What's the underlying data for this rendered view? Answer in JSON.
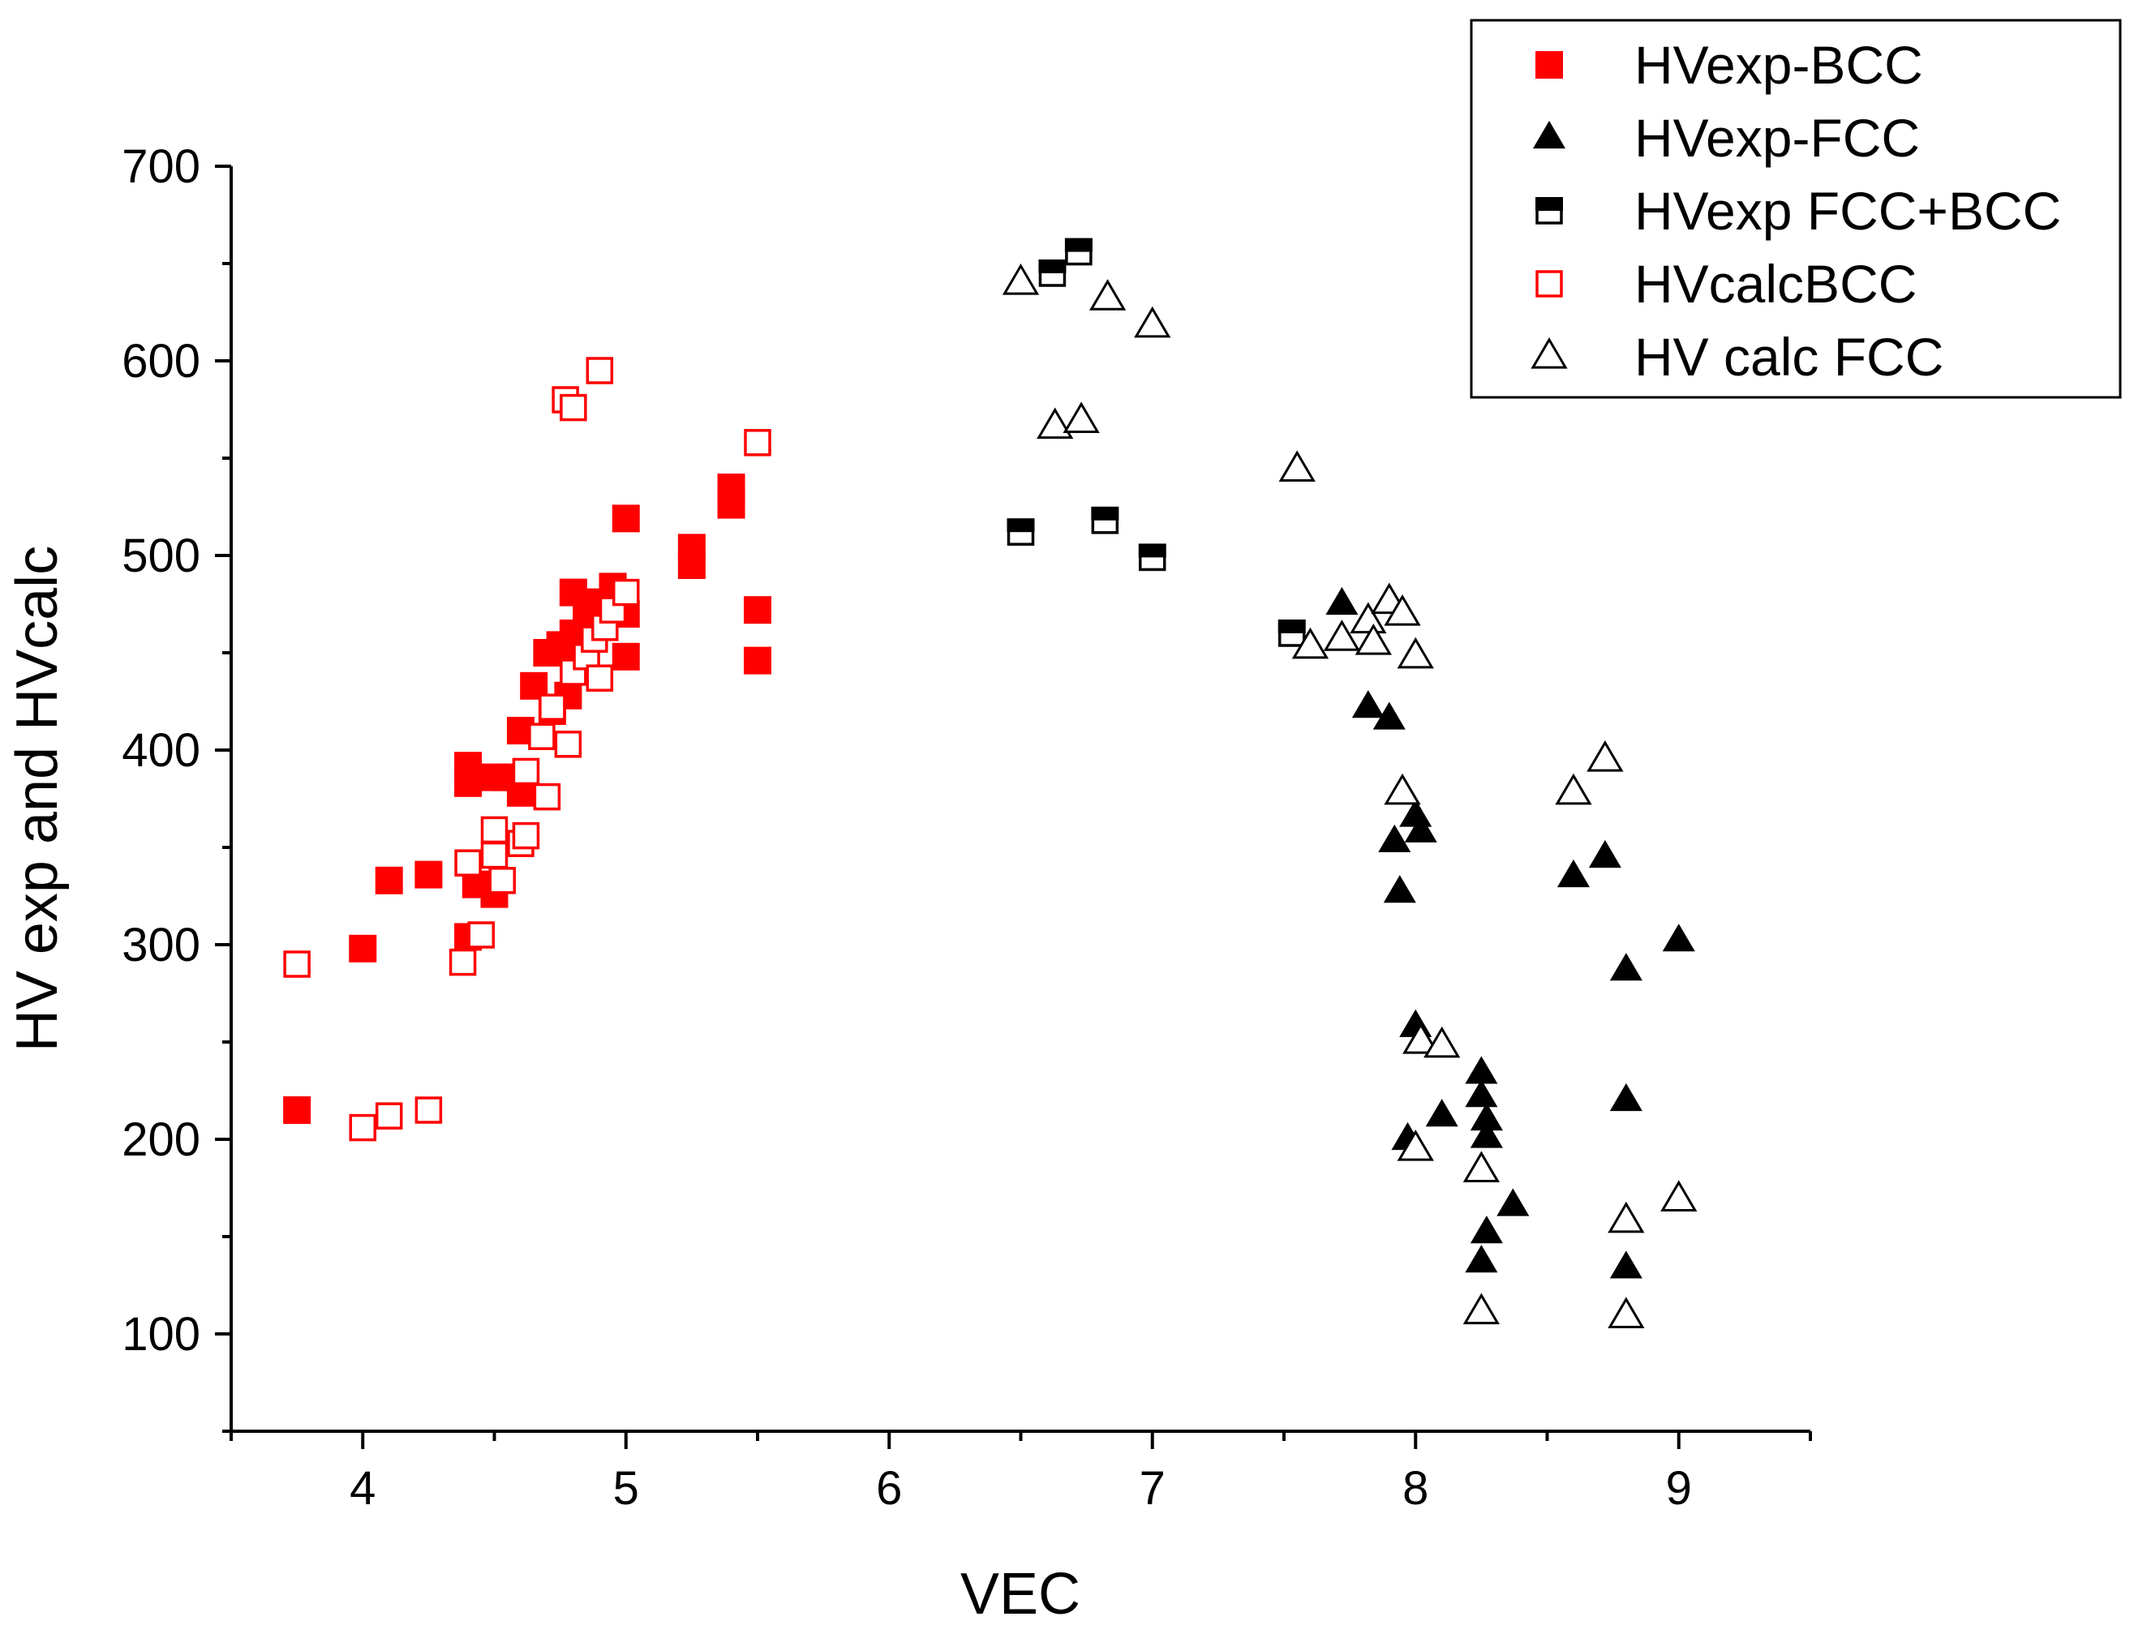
{
  "chart_data": {
    "type": "scatter",
    "title": "",
    "xlabel": "VEC",
    "ylabel": "HV exp and HVcalc",
    "xlim": [
      3.5,
      9.5
    ],
    "ylim": [
      50,
      700
    ],
    "xticks": [
      4,
      5,
      6,
      7,
      8,
      9
    ],
    "xtick_labels": [
      "4",
      "5",
      "6",
      "7",
      "8",
      "9"
    ],
    "yticks": [
      100,
      200,
      300,
      400,
      500,
      600,
      700
    ],
    "ytick_labels": [
      "100",
      "200",
      "300",
      "400",
      "500",
      "600",
      "700"
    ],
    "grid": false,
    "legend_position": "top-right",
    "series": [
      {
        "name": "HVexp-BCC",
        "marker": "square-filled",
        "color": "#ff0000",
        "points": [
          [
            3.75,
            215
          ],
          [
            4.0,
            298
          ],
          [
            4.1,
            333
          ],
          [
            4.25,
            336
          ],
          [
            4.4,
            304
          ],
          [
            4.4,
            383
          ],
          [
            4.4,
            392
          ],
          [
            4.43,
            331
          ],
          [
            4.5,
            326
          ],
          [
            4.5,
            386
          ],
          [
            4.55,
            386
          ],
          [
            4.6,
            378
          ],
          [
            4.6,
            410
          ],
          [
            4.65,
            433
          ],
          [
            4.7,
            450
          ],
          [
            4.72,
            420
          ],
          [
            4.75,
            454
          ],
          [
            4.78,
            428
          ],
          [
            4.8,
            460
          ],
          [
            4.8,
            481
          ],
          [
            4.85,
            470
          ],
          [
            4.9,
            476
          ],
          [
            4.95,
            484
          ],
          [
            5.0,
            448
          ],
          [
            5.0,
            470
          ],
          [
            5.0,
            519
          ],
          [
            5.25,
            495
          ],
          [
            5.25,
            504
          ],
          [
            5.4,
            526
          ],
          [
            5.4,
            535
          ],
          [
            5.5,
            446
          ],
          [
            5.5,
            472
          ]
        ]
      },
      {
        "name": "HVexp-FCC",
        "marker": "triangle-filled",
        "color": "#000000",
        "points": [
          [
            7.72,
            475
          ],
          [
            7.82,
            422
          ],
          [
            7.9,
            416
          ],
          [
            7.92,
            353
          ],
          [
            7.94,
            327
          ],
          [
            8.0,
            366
          ],
          [
            8.02,
            358
          ],
          [
            8.0,
            258
          ],
          [
            7.97,
            200
          ],
          [
            8.1,
            212
          ],
          [
            8.25,
            234
          ],
          [
            8.25,
            222
          ],
          [
            8.27,
            210
          ],
          [
            8.27,
            201
          ],
          [
            8.27,
            152
          ],
          [
            8.25,
            137
          ],
          [
            8.37,
            166
          ],
          [
            8.6,
            335
          ],
          [
            8.72,
            345
          ],
          [
            8.8,
            287
          ],
          [
            8.8,
            220
          ],
          [
            8.8,
            134
          ],
          [
            9.0,
            302
          ]
        ]
      },
      {
        "name": "HVexp FCC+BCC",
        "marker": "square-half",
        "color": "#000000",
        "points": [
          [
            6.5,
            512
          ],
          [
            6.62,
            645
          ],
          [
            6.72,
            656
          ],
          [
            6.82,
            518
          ],
          [
            7.0,
            499
          ],
          [
            7.53,
            460
          ]
        ]
      },
      {
        "name": "HVcalcBCC",
        "marker": "square-open",
        "color": "#ff0000",
        "points": [
          [
            3.75,
            290
          ],
          [
            4.0,
            206
          ],
          [
            4.1,
            212
          ],
          [
            4.25,
            215
          ],
          [
            4.38,
            291
          ],
          [
            4.4,
            342
          ],
          [
            4.45,
            305
          ],
          [
            4.5,
            359
          ],
          [
            4.5,
            346
          ],
          [
            4.53,
            333
          ],
          [
            4.6,
            352
          ],
          [
            4.62,
            356
          ],
          [
            4.62,
            389
          ],
          [
            4.68,
            407
          ],
          [
            4.7,
            376
          ],
          [
            4.72,
            422
          ],
          [
            4.77,
            580
          ],
          [
            4.8,
            576
          ],
          [
            4.78,
            403
          ],
          [
            4.8,
            440
          ],
          [
            4.85,
            448
          ],
          [
            4.88,
            457
          ],
          [
            4.9,
            437
          ],
          [
            4.9,
            595
          ],
          [
            4.92,
            463
          ],
          [
            4.95,
            472
          ],
          [
            5.0,
            481
          ],
          [
            5.5,
            558
          ]
        ]
      },
      {
        "name": "HV calc FCC",
        "marker": "triangle-open",
        "color": "#000000",
        "points": [
          [
            6.5,
            640
          ],
          [
            6.63,
            566
          ],
          [
            6.73,
            569
          ],
          [
            6.83,
            632
          ],
          [
            7.0,
            618
          ],
          [
            7.55,
            544
          ],
          [
            7.6,
            453
          ],
          [
            7.72,
            457
          ],
          [
            7.82,
            466
          ],
          [
            7.84,
            455
          ],
          [
            7.9,
            476
          ],
          [
            7.95,
            470
          ],
          [
            7.95,
            378
          ],
          [
            8.0,
            448
          ],
          [
            8.0,
            195
          ],
          [
            8.02,
            250
          ],
          [
            8.1,
            248
          ],
          [
            8.25,
            184
          ],
          [
            8.25,
            111
          ],
          [
            8.6,
            378
          ],
          [
            8.72,
            395
          ],
          [
            8.8,
            158
          ],
          [
            8.8,
            109
          ],
          [
            9.0,
            169
          ]
        ]
      }
    ]
  }
}
